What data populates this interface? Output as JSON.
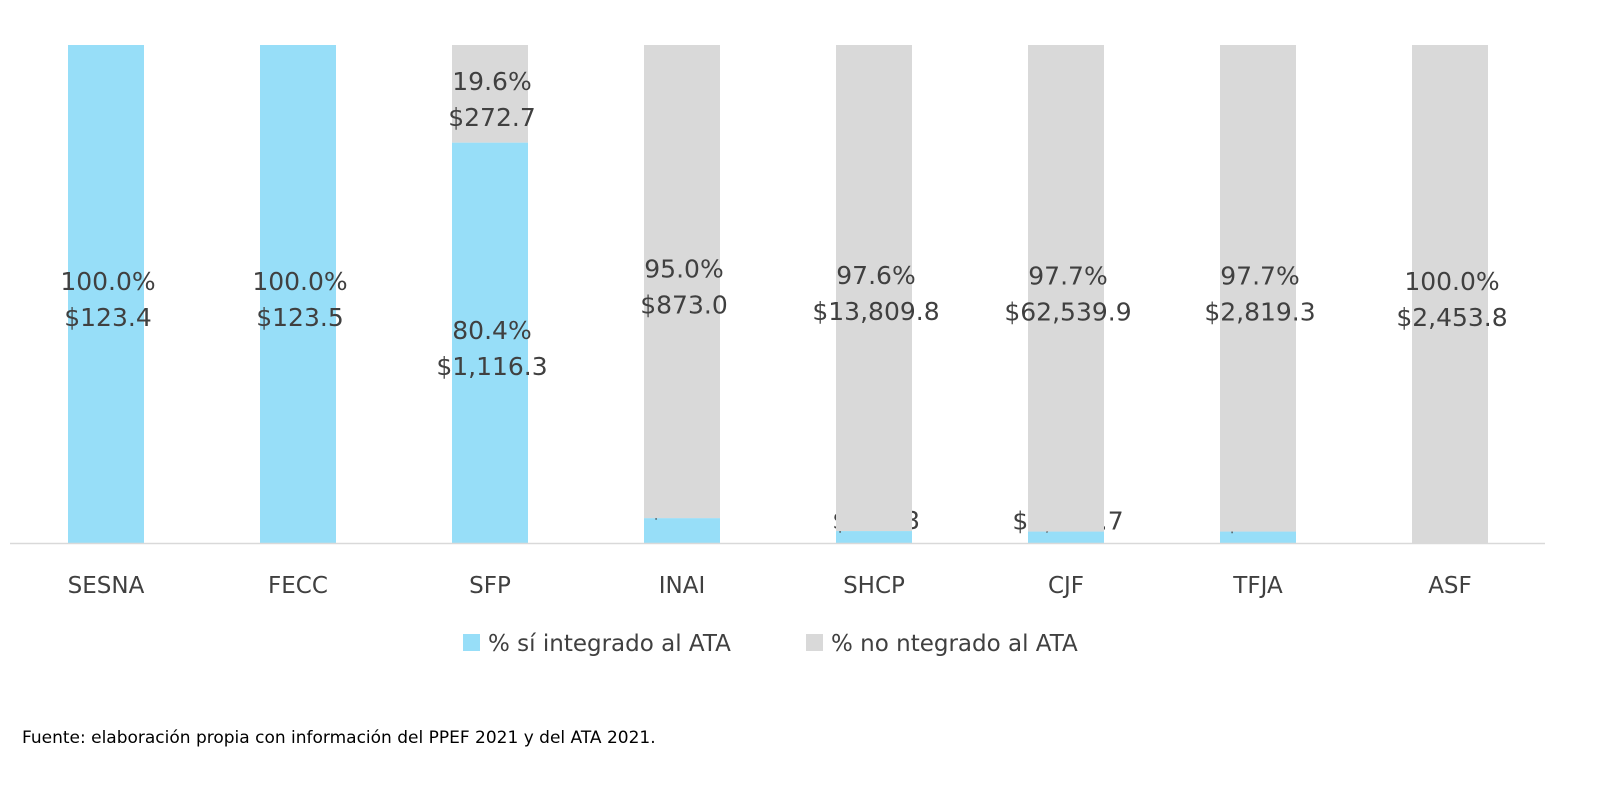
{
  "chart_data": {
    "type": "bar",
    "stacked": true,
    "percent_stacked": true,
    "categories": [
      "SESNA",
      "FECC",
      "SFP",
      "INAI",
      "SHCP",
      "CJF",
      "TFJA",
      "ASF"
    ],
    "series": [
      {
        "name": "% sí integrado al ATA",
        "color": "#97DEF8",
        "values": [
          100.0,
          100.0,
          80.4,
          5.0,
          2.4,
          2.3,
          2.3,
          0
        ],
        "labels": [
          [
            "100.0%",
            "$123.4"
          ],
          [
            "100.0%",
            "$123.5"
          ],
          [
            "80.4%",
            "$1,116.3"
          ],
          [
            "5.0%",
            "$45.7"
          ],
          [
            "2.4%",
            "$334.8"
          ],
          [
            "2.3%",
            "$1,504.7"
          ],
          [
            "2.3%",
            "$67.3"
          ],
          null
        ]
      },
      {
        "name": "% no ntegrado al ATA",
        "color": "#D9D9D9",
        "values": [
          0,
          0,
          19.6,
          95.0,
          97.6,
          97.7,
          97.7,
          100.0
        ],
        "labels": [
          null,
          null,
          [
            "19.6%",
            "$272.7"
          ],
          [
            "95.0%",
            "$873.0"
          ],
          [
            "97.6%",
            "$13,809.8"
          ],
          [
            "97.7%",
            "$62,539.9"
          ],
          [
            "97.7%",
            "$2,819.3"
          ],
          [
            "100.0%",
            "$2,453.8"
          ]
        ]
      }
    ],
    "ylim": [
      0,
      100
    ],
    "grid": false,
    "legend": "bottom"
  },
  "source": "Fuente: elaboración propia con información del PPEF 2021 y del ATA 2021."
}
